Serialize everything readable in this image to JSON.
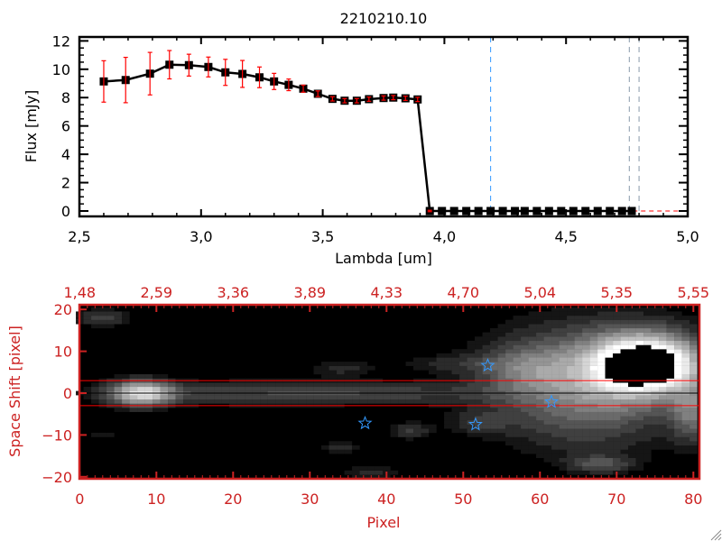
{
  "chart_data": [
    {
      "type": "line",
      "title": "2210210.10",
      "xlabel": "Lambda [um]",
      "ylabel": "Flux [mJy]",
      "xlim": [
        2.5,
        5.0
      ],
      "ylim": [
        -0.5,
        12.3
      ],
      "xticks": [
        "2.5",
        "3.0",
        "3.5",
        "4.0",
        "4.5",
        "5.0"
      ],
      "yticks": [
        "0",
        "2",
        "4",
        "6",
        "8",
        "10",
        "12"
      ],
      "series": [
        {
          "x": [
            2.6,
            2.69,
            2.79,
            2.87,
            2.95,
            3.03,
            3.1,
            3.17,
            3.24,
            3.3,
            3.36,
            3.42,
            3.48,
            3.54,
            3.59,
            3.64,
            3.69,
            3.75,
            3.79,
            3.84,
            3.89,
            3.94,
            3.99,
            4.04,
            4.09,
            4.14,
            4.19,
            4.24,
            4.29,
            4.33,
            4.38,
            4.43,
            4.48,
            4.53,
            4.58,
            4.63,
            4.68,
            4.73,
            4.77
          ],
          "y": [
            9.14,
            9.24,
            9.69,
            10.32,
            10.29,
            10.16,
            9.78,
            9.67,
            9.43,
            9.14,
            8.9,
            8.63,
            8.27,
            7.91,
            7.78,
            7.78,
            7.89,
            7.97,
            8.0,
            7.95,
            7.87,
            0,
            0,
            0,
            0,
            0,
            0,
            0,
            0,
            0,
            0,
            0,
            0,
            0,
            0,
            0,
            0,
            0,
            0
          ],
          "yerr": [
            1.46,
            1.6,
            1.5,
            1.0,
            0.77,
            0.7,
            0.92,
            0.95,
            0.73,
            0.57,
            0.41,
            0.25,
            0.2,
            0.15,
            0.15,
            0.15,
            0.15,
            0.15,
            0.15,
            0.15,
            0.15,
            0.05,
            0,
            0,
            0,
            0,
            0,
            0,
            0,
            0,
            0,
            0,
            0,
            0,
            0,
            0,
            0,
            0,
            0
          ],
          "marker": "square",
          "line_color": "#000000",
          "errorbar_color": "#ff0000"
        }
      ],
      "vlines": [
        {
          "x": 4.19,
          "style": "dashed",
          "color": "#3399ff"
        },
        {
          "x": 4.76,
          "style": "dashed",
          "color": "#8899aa"
        },
        {
          "x": 4.8,
          "style": "dashed",
          "color": "#8899aa"
        }
      ],
      "hlines": [
        {
          "y": 0,
          "style": "dashed",
          "color": "#ff0000",
          "from_x": 3.94
        }
      ],
      "grid": false
    },
    {
      "type": "heatmap",
      "xlabel": "Pixel",
      "ylabel": "Space Shift [pixel]",
      "xlim": [
        0,
        81
      ],
      "ylim": [
        -21,
        21
      ],
      "xticks": [
        "0",
        "10",
        "20",
        "30",
        "40",
        "50",
        "60",
        "70",
        "80"
      ],
      "top_xticks": [
        "1.48",
        "2.59",
        "3.36",
        "3.89",
        "4.33",
        "4.70",
        "5.04",
        "5.35",
        "5.55"
      ],
      "yticks": [
        "-20",
        "-10",
        "0",
        "10",
        "20"
      ],
      "colormap": "grayscale",
      "axis_color": "#cc2222",
      "hlines": [
        {
          "y": 3,
          "color": "#ff0000"
        },
        {
          "y": -3,
          "color": "#ff0000"
        },
        {
          "y": 0,
          "color": "#000000"
        }
      ],
      "stars": [
        {
          "x": 53.2,
          "y": 6.6
        },
        {
          "x": 37.2,
          "y": -7.2
        },
        {
          "x": 51.6,
          "y": -7.5
        },
        {
          "x": 61.5,
          "y": -2.1
        }
      ],
      "star_color": "#3399ff",
      "grid": false
    }
  ]
}
